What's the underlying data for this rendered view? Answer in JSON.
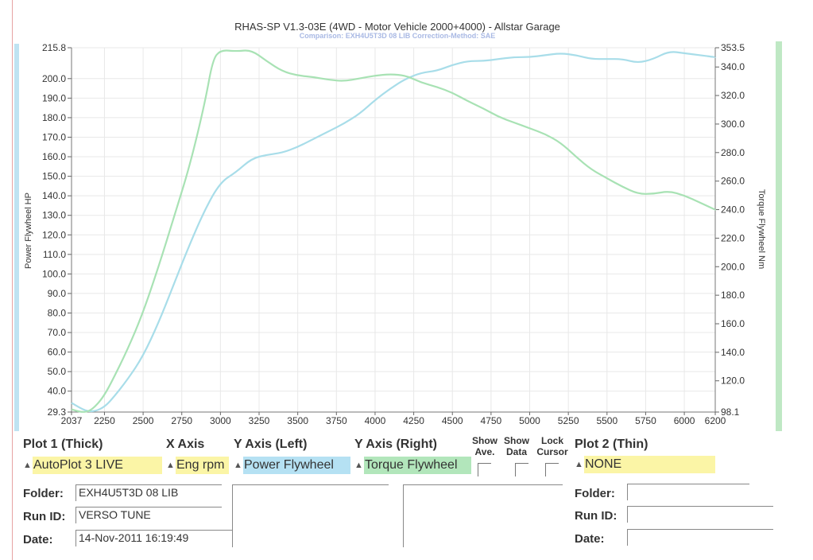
{
  "chart_data": {
    "type": "line",
    "title": "RHAS-SP V1.3-03E  (4WD - Motor Vehicle 2000+4000) - Allstar Garage",
    "subtitle": "Comparison: EXH4U5T3D 08 LIB    Correction-Method: SAE",
    "xlabel": "",
    "ylabel_left": "Power Flywheel HP",
    "ylabel_right": "Torque Flywheel Nm",
    "xlim": [
      2037,
      6200
    ],
    "ylim_left": [
      29.3,
      215.8
    ],
    "ylim_right": [
      98.1,
      353.5
    ],
    "x_ticks": [
      "2037",
      "2250",
      "2500",
      "2750",
      "3000",
      "3250",
      "3500",
      "3750",
      "4000",
      "4250",
      "4500",
      "4750",
      "5000",
      "5250",
      "5500",
      "5750",
      "6000",
      "6200"
    ],
    "y_ticks_left": [
      "215.8",
      "200.0",
      "190.0",
      "180.0",
      "170.0",
      "160.0",
      "150.0",
      "140.0",
      "130.0",
      "120.0",
      "110.0",
      "100.0",
      "90.0",
      "80.0",
      "70.0",
      "60.0",
      "50.0",
      "40.0",
      "29.3"
    ],
    "y_ticks_right": [
      "353.5",
      "340.0",
      "320.0",
      "300.0",
      "280.0",
      "260.0",
      "240.0",
      "220.0",
      "200.0",
      "180.0",
      "160.0",
      "140.0",
      "120.0",
      "98.1"
    ],
    "grid": true,
    "series": [
      {
        "name": "Power Flywheel",
        "axis": "left",
        "color": "#a8dde9",
        "x": [
          2037,
          2100,
          2150,
          2200,
          2250,
          2300,
          2400,
          2500,
          2600,
          2700,
          2800,
          2900,
          3000,
          3100,
          3200,
          3300,
          3400,
          3500,
          3600,
          3700,
          3800,
          3900,
          4000,
          4100,
          4200,
          4300,
          4400,
          4500,
          4600,
          4700,
          4800,
          4900,
          5000,
          5100,
          5200,
          5300,
          5400,
          5500,
          5600,
          5700,
          5800,
          5900,
          6000,
          6100,
          6200
        ],
        "y": [
          34,
          31,
          29.5,
          30,
          32,
          36,
          46,
          58,
          75,
          95,
          115,
          133,
          147,
          152,
          159,
          161,
          162,
          165,
          169,
          173,
          177,
          182,
          189,
          195,
          200,
          203,
          204,
          207,
          209,
          209,
          210,
          211,
          211,
          212,
          213,
          212,
          210,
          210,
          210,
          208,
          210,
          214,
          213,
          212,
          211
        ]
      },
      {
        "name": "Torque Flywheel",
        "axis": "right",
        "color": "#a8e2b4",
        "x": [
          2037,
          2100,
          2150,
          2200,
          2250,
          2300,
          2400,
          2500,
          2600,
          2700,
          2800,
          2900,
          2950,
          3000,
          3100,
          3200,
          3300,
          3400,
          3500,
          3600,
          3700,
          3800,
          3900,
          4000,
          4100,
          4200,
          4300,
          4400,
          4500,
          4600,
          4700,
          4800,
          4900,
          5000,
          5100,
          5200,
          5300,
          5400,
          5500,
          5600,
          5700,
          5800,
          5900,
          6000,
          6100,
          6200
        ],
        "y": [
          100,
          98,
          98.5,
          103,
          110,
          120,
          142,
          168,
          200,
          235,
          270,
          315,
          345,
          352,
          351,
          352,
          344,
          337,
          334,
          333,
          331,
          330,
          332,
          334,
          335,
          334,
          329,
          326,
          322,
          316,
          311,
          305,
          301,
          297,
          293,
          287,
          277,
          268,
          262,
          256,
          251,
          251,
          253,
          250,
          245,
          240
        ]
      }
    ]
  },
  "plot1": {
    "heading": "Plot 1 (Thick)",
    "selection": "AutoPlot 3 LIVE",
    "folder_label": "Folder:",
    "folder": "EXH4U5T3D 08 LIB",
    "runid_label": "Run ID:",
    "runid": "VERSO TUNE",
    "date_label": "Date:",
    "date": "14-Nov-2011  16:19:49"
  },
  "xaxis": {
    "heading": "X Axis",
    "selection": "Eng rpm"
  },
  "yleft": {
    "heading": "Y Axis (Left)",
    "selection": "Power Flywheel"
  },
  "yright": {
    "heading": "Y Axis (Right)",
    "selection": "Torque Flywheel"
  },
  "options": {
    "show_ave_1": "Show",
    "show_ave_2": "Ave.",
    "show_data_1": "Show",
    "show_data_2": "Data",
    "lock_cursor_1": "Lock",
    "lock_cursor_2": "Cursor"
  },
  "plot2": {
    "heading": "Plot 2 (Thin)",
    "selection": "NONE",
    "folder_label": "Folder:",
    "folder": "",
    "runid_label": "Run ID:",
    "runid": "",
    "date_label": "Date:",
    "date": ""
  },
  "colors": {
    "yellow": "#fbf5a6",
    "blue": "#b5e1f3",
    "green": "#b2e6bb"
  }
}
